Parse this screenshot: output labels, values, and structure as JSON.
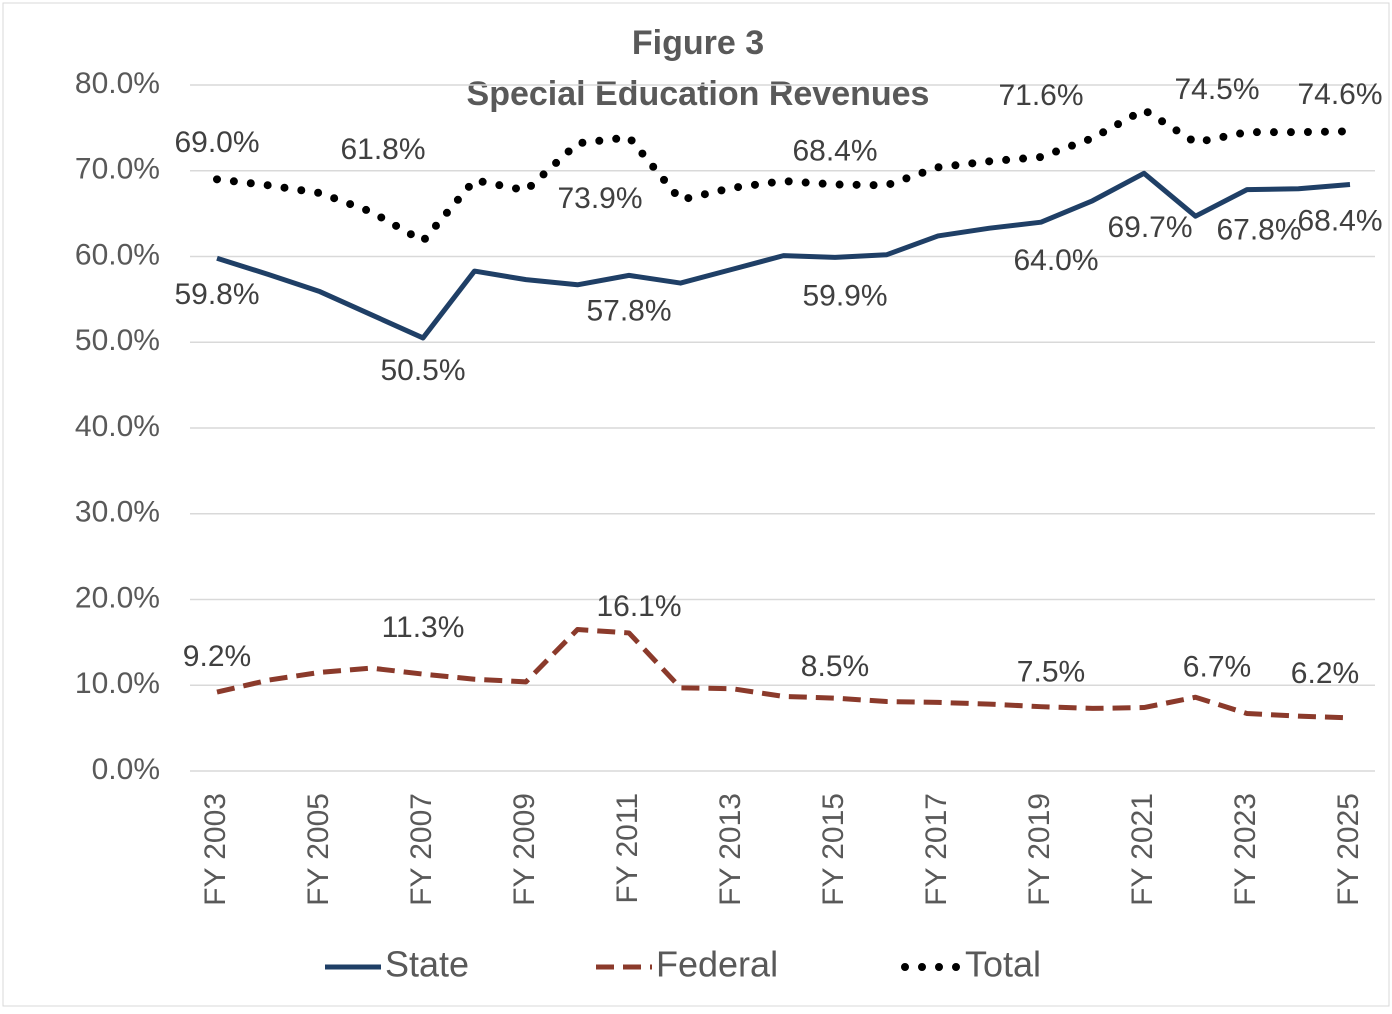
{
  "chart_data": {
    "type": "line",
    "title": "Figure 3",
    "subtitle": "Special Education Revenues",
    "categories": [
      "FY 2003",
      null,
      "FY 2005",
      null,
      "FY 2007",
      null,
      "FY 2009",
      null,
      "FY 2011",
      null,
      "FY 2013",
      null,
      "FY 2015",
      null,
      "FY 2017",
      null,
      "FY 2019",
      null,
      "FY 2021",
      null,
      "FY 2023",
      null,
      "FY 2025"
    ],
    "ylim": [
      0,
      80
    ],
    "yticks": [
      {
        "value": 0,
        "label": "0.0%"
      },
      {
        "value": 10,
        "label": "10.0%"
      },
      {
        "value": 20,
        "label": "20.0%"
      },
      {
        "value": 30,
        "label": "30.0%"
      },
      {
        "value": 40,
        "label": "40.0%"
      },
      {
        "value": 50,
        "label": "50.0%"
      },
      {
        "value": 60,
        "label": "60.0%"
      },
      {
        "value": 70,
        "label": "70.0%"
      },
      {
        "value": 80,
        "label": "80.0%"
      }
    ],
    "grid": true,
    "legend": "bottom",
    "series": [
      {
        "name": "State",
        "color": "#1f3f66",
        "style": "solid",
        "values": [
          59.8,
          57.9,
          55.9,
          53.2,
          50.5,
          58.3,
          57.3,
          56.7,
          57.8,
          56.9,
          58.5,
          60.1,
          59.9,
          60.2,
          62.4,
          63.3,
          64.0,
          66.5,
          69.7,
          64.7,
          67.8,
          67.9,
          68.4
        ],
        "value_labels": [
          "59.8%",
          null,
          null,
          null,
          "50.5%",
          null,
          null,
          null,
          "57.8%",
          null,
          null,
          null,
          "59.9%",
          null,
          null,
          null,
          "64.0%",
          null,
          "69.7%",
          null,
          "67.8%",
          null,
          "68.4%"
        ]
      },
      {
        "name": "Federal",
        "color": "#8b3a2b",
        "style": "dashed",
        "values": [
          9.2,
          10.6,
          11.5,
          12.0,
          11.3,
          10.7,
          10.4,
          16.5,
          16.1,
          9.7,
          9.6,
          8.7,
          8.5,
          8.1,
          8.0,
          7.8,
          7.5,
          7.3,
          7.4,
          8.6,
          6.7,
          6.4,
          6.2
        ],
        "value_labels": [
          "9.2%",
          null,
          null,
          null,
          "11.3%",
          null,
          null,
          null,
          "16.1%",
          null,
          null,
          null,
          "8.5%",
          null,
          null,
          null,
          "7.5%",
          null,
          null,
          null,
          "6.7%",
          null,
          "6.2%"
        ]
      },
      {
        "name": "Total",
        "color": "#000000",
        "style": "dotted",
        "values": [
          69.0,
          68.3,
          67.4,
          65.2,
          61.8,
          68.9,
          67.7,
          73.2,
          73.9,
          66.6,
          68.0,
          68.8,
          68.4,
          68.3,
          70.4,
          71.1,
          71.6,
          73.8,
          77.1,
          73.3,
          74.5,
          74.5,
          74.6
        ],
        "value_labels": [
          "69.0%",
          null,
          null,
          null,
          "61.8%",
          null,
          null,
          null,
          "73.9%",
          null,
          null,
          null,
          "68.4%",
          null,
          null,
          null,
          "71.6%",
          null,
          null,
          null,
          "74.5%",
          null,
          "74.6%"
        ]
      }
    ]
  }
}
